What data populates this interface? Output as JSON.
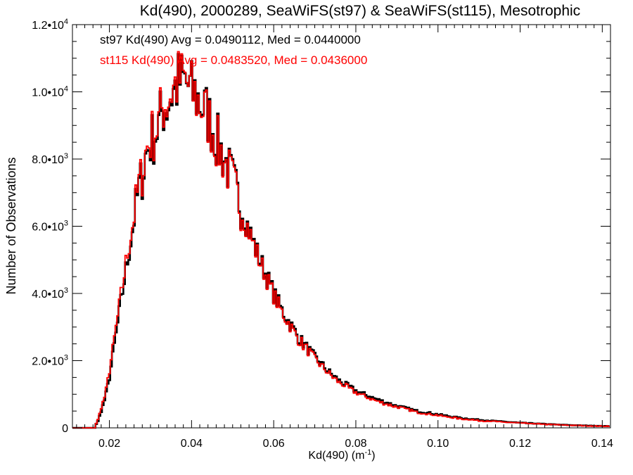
{
  "chart_data": {
    "type": "line",
    "title": "Kd(490), 2000289, SeaWiFS(st97) & SeaWiFS(st115), Mesotrophic",
    "xlabel": "Kd(490) (m",
    "xlabel_sup": "-1",
    "xlabel_close": ")",
    "ylabel": "Number of Observations",
    "xlim": [
      0.011,
      0.142
    ],
    "ylim": [
      0,
      12000
    ],
    "x_ticks": [
      {
        "value": 0.02,
        "label": "0.02"
      },
      {
        "value": 0.04,
        "label": "0.04"
      },
      {
        "value": 0.06,
        "label": "0.06"
      },
      {
        "value": 0.08,
        "label": "0.08"
      },
      {
        "value": 0.1,
        "label": "0.10"
      },
      {
        "value": 0.12,
        "label": "0.12"
      },
      {
        "value": 0.14,
        "label": "0.14"
      }
    ],
    "y_ticks": [
      {
        "value": 0,
        "mant": "0",
        "exp": ""
      },
      {
        "value": 2000,
        "mant": "2.0•10",
        "exp": "3"
      },
      {
        "value": 4000,
        "mant": "4.0•10",
        "exp": "3"
      },
      {
        "value": 6000,
        "mant": "6.0•10",
        "exp": "3"
      },
      {
        "value": 8000,
        "mant": "8.0•10",
        "exp": "3"
      },
      {
        "value": 10000,
        "mant": "1.0•10",
        "exp": "4"
      },
      {
        "value": 12000,
        "mant": "1.2•10",
        "exp": "4"
      }
    ],
    "annotations": [
      {
        "text": "st97 Kd(490) Avg = 0.0490112, Med = 0.0440000",
        "color": "#000000"
      },
      {
        "text": "st115 Kd(490) Avg = 0.0483520, Med = 0.0436000",
        "color": "#ff0000"
      }
    ],
    "bin_width": 0.0004,
    "series": [
      {
        "color": "#000000",
        "x": [
          0.011,
          0.017,
          0.018,
          0.019,
          0.02,
          0.021,
          0.022,
          0.023,
          0.024,
          0.025,
          0.026,
          0.027,
          0.028,
          0.029,
          0.03,
          0.031,
          0.032,
          0.033,
          0.034,
          0.035,
          0.036,
          0.037,
          0.038,
          0.039,
          0.04,
          0.041,
          0.042,
          0.043,
          0.044,
          0.045,
          0.046,
          0.048,
          0.05,
          0.052,
          0.054,
          0.056,
          0.058,
          0.06,
          0.062,
          0.064,
          0.066,
          0.068,
          0.07,
          0.072,
          0.074,
          0.076,
          0.078,
          0.08,
          0.085,
          0.09,
          0.095,
          0.1,
          0.105,
          0.11,
          0.115,
          0.12,
          0.125,
          0.13,
          0.135,
          0.14,
          0.142
        ],
        "values": [
          0,
          120,
          500,
          900,
          1500,
          2300,
          3100,
          3900,
          4700,
          5400,
          6200,
          7000,
          7500,
          8200,
          8500,
          8700,
          9000,
          9500,
          9600,
          9900,
          10100,
          10300,
          10300,
          10200,
          10000,
          9900,
          9700,
          9500,
          9300,
          9000,
          8600,
          8000,
          7400,
          6600,
          5900,
          5200,
          4600,
          4000,
          3500,
          3100,
          2700,
          2400,
          2100,
          1850,
          1600,
          1400,
          1250,
          1100,
          850,
          650,
          500,
          400,
          300,
          240,
          190,
          150,
          120,
          90,
          70,
          55,
          50
        ]
      },
      {
        "color": "#ff0000",
        "x": [
          0.011,
          0.017,
          0.018,
          0.019,
          0.02,
          0.021,
          0.022,
          0.023,
          0.024,
          0.025,
          0.026,
          0.027,
          0.028,
          0.029,
          0.03,
          0.031,
          0.032,
          0.033,
          0.034,
          0.035,
          0.036,
          0.037,
          0.038,
          0.039,
          0.04,
          0.041,
          0.042,
          0.043,
          0.044,
          0.045,
          0.046,
          0.048,
          0.05,
          0.052,
          0.054,
          0.056,
          0.058,
          0.06,
          0.062,
          0.064,
          0.066,
          0.068,
          0.07,
          0.072,
          0.074,
          0.076,
          0.078,
          0.08,
          0.085,
          0.09,
          0.095,
          0.1,
          0.105,
          0.11,
          0.115,
          0.12,
          0.125,
          0.13,
          0.135,
          0.14,
          0.142
        ],
        "values": [
          0,
          150,
          600,
          1000,
          1700,
          2500,
          3300,
          4100,
          4900,
          5600,
          6300,
          7100,
          7600,
          8300,
          8600,
          8800,
          9100,
          9600,
          9700,
          10000,
          10200,
          10350,
          10350,
          10200,
          10000,
          9850,
          9650,
          9450,
          9250,
          8950,
          8550,
          7950,
          7350,
          6550,
          5850,
          5150,
          4550,
          3950,
          3450,
          3050,
          2650,
          2350,
          2050,
          1800,
          1550,
          1350,
          1200,
          1050,
          800,
          620,
          470,
          370,
          280,
          220,
          175,
          140,
          110,
          85,
          65,
          50,
          45
        ]
      }
    ]
  }
}
